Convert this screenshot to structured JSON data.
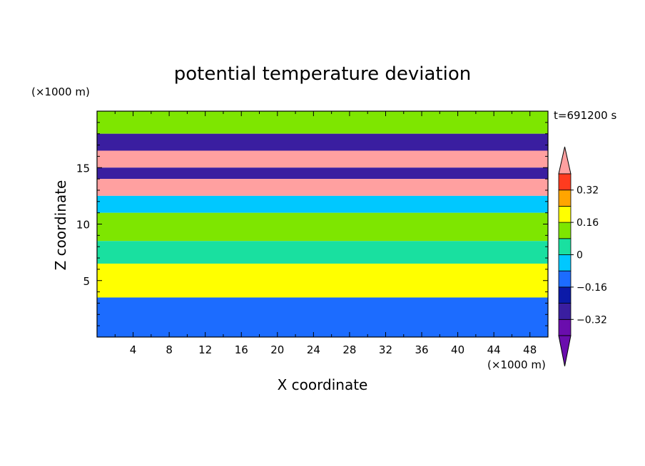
{
  "chart_data": {
    "type": "heatmap",
    "title": "potential temperature deviation",
    "xlabel": "X coordinate",
    "ylabel": "Z coordinate",
    "x_unit": "(×1000 m)",
    "y_unit": "(×1000 m)",
    "time_label": "t=691200 s",
    "xlim": [
      0,
      50
    ],
    "ylim": [
      0,
      20
    ],
    "x_ticks": [
      4,
      8,
      12,
      16,
      20,
      24,
      28,
      32,
      36,
      40,
      44,
      48
    ],
    "y_ticks": [
      5,
      10,
      15
    ],
    "colorbar": {
      "levels": [
        -0.4,
        -0.32,
        -0.24,
        -0.16,
        -0.08,
        0,
        0.08,
        0.16,
        0.24,
        0.32,
        0.4
      ],
      "labeled_ticks": [
        0.32,
        0.16,
        0,
        -0.16,
        -0.32
      ],
      "tick_labels": [
        "0.32",
        "0.16",
        "0",
        "−0.16",
        "−0.32"
      ],
      "colors": [
        "#6a0dad",
        "#3a1ea0",
        "#0b1aa8",
        "#1c6cff",
        "#00c8ff",
        "#19e0a0",
        "#7ee600",
        "#ffff00",
        "#ffa500",
        "#ff3b1f",
        "#ffa0a0"
      ],
      "extend": "both"
    },
    "bands": [
      {
        "z": [
          18.0,
          20.0
        ],
        "anomaly": 0.05
      },
      {
        "z": [
          16.5,
          18.0
        ],
        "anomaly": -0.36
      },
      {
        "z": [
          15.0,
          16.5
        ],
        "anomaly": 0.4
      },
      {
        "z": [
          14.0,
          15.0
        ],
        "anomaly": -0.38
      },
      {
        "z": [
          12.5,
          14.0
        ],
        "anomaly": 0.4
      },
      {
        "z": [
          11.0,
          12.5
        ],
        "anomaly": -0.12
      },
      {
        "z": [
          8.5,
          11.0
        ],
        "anomaly": 0.05
      },
      {
        "z": [
          6.5,
          8.5
        ],
        "anomaly": -0.05
      },
      {
        "z": [
          3.5,
          6.5
        ],
        "anomaly": 0.08
      },
      {
        "z": [
          0.0,
          3.5
        ],
        "anomaly": -0.2
      }
    ]
  }
}
